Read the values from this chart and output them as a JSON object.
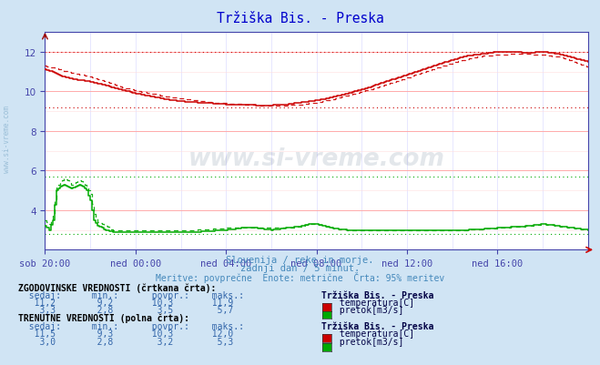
{
  "title": "Tržiška Bis. - Preska",
  "title_color": "#0000cc",
  "bg_color": "#d0e4f4",
  "plot_bg_color": "#ffffff",
  "grid_color_major_h": "#ffaaaa",
  "grid_color_minor_h": "#ffdddd",
  "grid_color_v": "#ddddff",
  "axis_color": "#4444aa",
  "tick_color": "#4444aa",
  "xlim": [
    0,
    288
  ],
  "ylim": [
    2.0,
    13.0
  ],
  "yticks": [
    4,
    6,
    8,
    10,
    12
  ],
  "xtick_labels": [
    "sob 20:00",
    "ned 00:00",
    "ned 04:00",
    "ned 08:00",
    "ned 12:00",
    "ned 16:00"
  ],
  "xtick_positions": [
    0,
    48,
    96,
    144,
    192,
    240
  ],
  "subtitle1": "Slovenija / reke in morje.",
  "subtitle2": "zadnji dan / 5 minut.",
  "subtitle3": "Meritve: povprečne  Enote: metrične  Črta: 95% meritev",
  "subtitle_color": "#4488bb",
  "temp_color": "#cc0000",
  "flow_color": "#00aa00",
  "watermark_text": "www.si-vreme.com",
  "watermark_color": "#1a3a5c",
  "watermark_alpha": 0.12,
  "sidewatermark_color": "#6699bb",
  "sidewatermark_alpha": 0.5,
  "table_header_color": "#000000",
  "table_label_color": "#3366aa",
  "table_value_color": "#3366aa",
  "table_station_color": "#000044",
  "temp_dotted_max": 12.0,
  "temp_dotted_min": 9.2,
  "flow_dotted_max": 5.7,
  "flow_dotted_min": 2.8,
  "temp_solid_pts": [
    [
      0,
      11.1
    ],
    [
      4,
      11.0
    ],
    [
      8,
      10.8
    ],
    [
      16,
      10.6
    ],
    [
      24,
      10.5
    ],
    [
      32,
      10.3
    ],
    [
      40,
      10.1
    ],
    [
      48,
      9.9
    ],
    [
      56,
      9.75
    ],
    [
      64,
      9.6
    ],
    [
      72,
      9.5
    ],
    [
      80,
      9.45
    ],
    [
      88,
      9.4
    ],
    [
      96,
      9.35
    ],
    [
      104,
      9.35
    ],
    [
      112,
      9.3
    ],
    [
      120,
      9.3
    ],
    [
      128,
      9.35
    ],
    [
      136,
      9.45
    ],
    [
      144,
      9.55
    ],
    [
      152,
      9.7
    ],
    [
      160,
      9.9
    ],
    [
      168,
      10.1
    ],
    [
      176,
      10.35
    ],
    [
      184,
      10.6
    ],
    [
      192,
      10.85
    ],
    [
      200,
      11.1
    ],
    [
      208,
      11.35
    ],
    [
      216,
      11.6
    ],
    [
      224,
      11.8
    ],
    [
      232,
      11.9
    ],
    [
      240,
      12.0
    ],
    [
      248,
      12.0
    ],
    [
      256,
      11.95
    ],
    [
      264,
      12.0
    ],
    [
      272,
      11.9
    ],
    [
      280,
      11.7
    ],
    [
      288,
      11.5
    ]
  ],
  "temp_dashed_pts": [
    [
      0,
      11.3
    ],
    [
      4,
      11.2
    ],
    [
      8,
      11.1
    ],
    [
      16,
      10.9
    ],
    [
      24,
      10.75
    ],
    [
      32,
      10.5
    ],
    [
      40,
      10.25
    ],
    [
      48,
      10.05
    ],
    [
      56,
      9.9
    ],
    [
      64,
      9.75
    ],
    [
      72,
      9.65
    ],
    [
      80,
      9.55
    ],
    [
      88,
      9.45
    ],
    [
      96,
      9.4
    ],
    [
      104,
      9.35
    ],
    [
      112,
      9.3
    ],
    [
      120,
      9.3
    ],
    [
      128,
      9.3
    ],
    [
      136,
      9.35
    ],
    [
      144,
      9.45
    ],
    [
      152,
      9.6
    ],
    [
      160,
      9.8
    ],
    [
      168,
      10.0
    ],
    [
      176,
      10.2
    ],
    [
      184,
      10.45
    ],
    [
      192,
      10.7
    ],
    [
      200,
      10.95
    ],
    [
      208,
      11.2
    ],
    [
      216,
      11.45
    ],
    [
      224,
      11.65
    ],
    [
      232,
      11.8
    ],
    [
      240,
      11.85
    ],
    [
      248,
      11.9
    ],
    [
      256,
      11.9
    ],
    [
      264,
      11.85
    ],
    [
      272,
      11.75
    ],
    [
      280,
      11.55
    ],
    [
      288,
      11.2
    ]
  ],
  "flow_solid_pts": [
    [
      0,
      3.2
    ],
    [
      2,
      3.0
    ],
    [
      4,
      3.5
    ],
    [
      6,
      5.0
    ],
    [
      8,
      5.2
    ],
    [
      10,
      5.3
    ],
    [
      12,
      5.2
    ],
    [
      14,
      5.1
    ],
    [
      16,
      5.2
    ],
    [
      18,
      5.3
    ],
    [
      20,
      5.2
    ],
    [
      22,
      5.0
    ],
    [
      24,
      4.5
    ],
    [
      26,
      3.5
    ],
    [
      28,
      3.2
    ],
    [
      32,
      3.0
    ],
    [
      36,
      2.9
    ],
    [
      48,
      2.9
    ],
    [
      56,
      2.9
    ],
    [
      80,
      2.9
    ],
    [
      96,
      3.0
    ],
    [
      104,
      3.1
    ],
    [
      112,
      3.1
    ],
    [
      120,
      3.0
    ],
    [
      128,
      3.1
    ],
    [
      136,
      3.2
    ],
    [
      140,
      3.3
    ],
    [
      144,
      3.3
    ],
    [
      148,
      3.2
    ],
    [
      152,
      3.1
    ],
    [
      160,
      3.0
    ],
    [
      168,
      3.0
    ],
    [
      176,
      3.0
    ],
    [
      192,
      3.0
    ],
    [
      208,
      3.0
    ],
    [
      224,
      3.0
    ],
    [
      240,
      3.1
    ],
    [
      256,
      3.2
    ],
    [
      264,
      3.3
    ],
    [
      272,
      3.2
    ],
    [
      280,
      3.1
    ],
    [
      288,
      3.0
    ]
  ],
  "flow_dashed_pts": [
    [
      0,
      3.5
    ],
    [
      2,
      3.3
    ],
    [
      4,
      3.8
    ],
    [
      6,
      5.2
    ],
    [
      8,
      5.4
    ],
    [
      10,
      5.6
    ],
    [
      12,
      5.5
    ],
    [
      14,
      5.3
    ],
    [
      16,
      5.4
    ],
    [
      18,
      5.5
    ],
    [
      20,
      5.4
    ],
    [
      22,
      5.2
    ],
    [
      24,
      4.8
    ],
    [
      26,
      3.8
    ],
    [
      28,
      3.4
    ],
    [
      32,
      3.2
    ],
    [
      36,
      3.0
    ],
    [
      48,
      3.0
    ],
    [
      56,
      3.0
    ],
    [
      80,
      3.0
    ],
    [
      96,
      3.1
    ],
    [
      104,
      3.1
    ],
    [
      112,
      3.1
    ],
    [
      120,
      3.1
    ],
    [
      128,
      3.1
    ],
    [
      136,
      3.2
    ],
    [
      140,
      3.3
    ],
    [
      144,
      3.3
    ],
    [
      148,
      3.2
    ],
    [
      152,
      3.1
    ],
    [
      160,
      3.0
    ],
    [
      168,
      3.0
    ],
    [
      176,
      3.0
    ],
    [
      192,
      3.0
    ],
    [
      208,
      3.0
    ],
    [
      224,
      3.0
    ],
    [
      240,
      3.1
    ],
    [
      256,
      3.2
    ],
    [
      264,
      3.3
    ],
    [
      272,
      3.2
    ],
    [
      280,
      3.1
    ],
    [
      288,
      3.0
    ]
  ]
}
